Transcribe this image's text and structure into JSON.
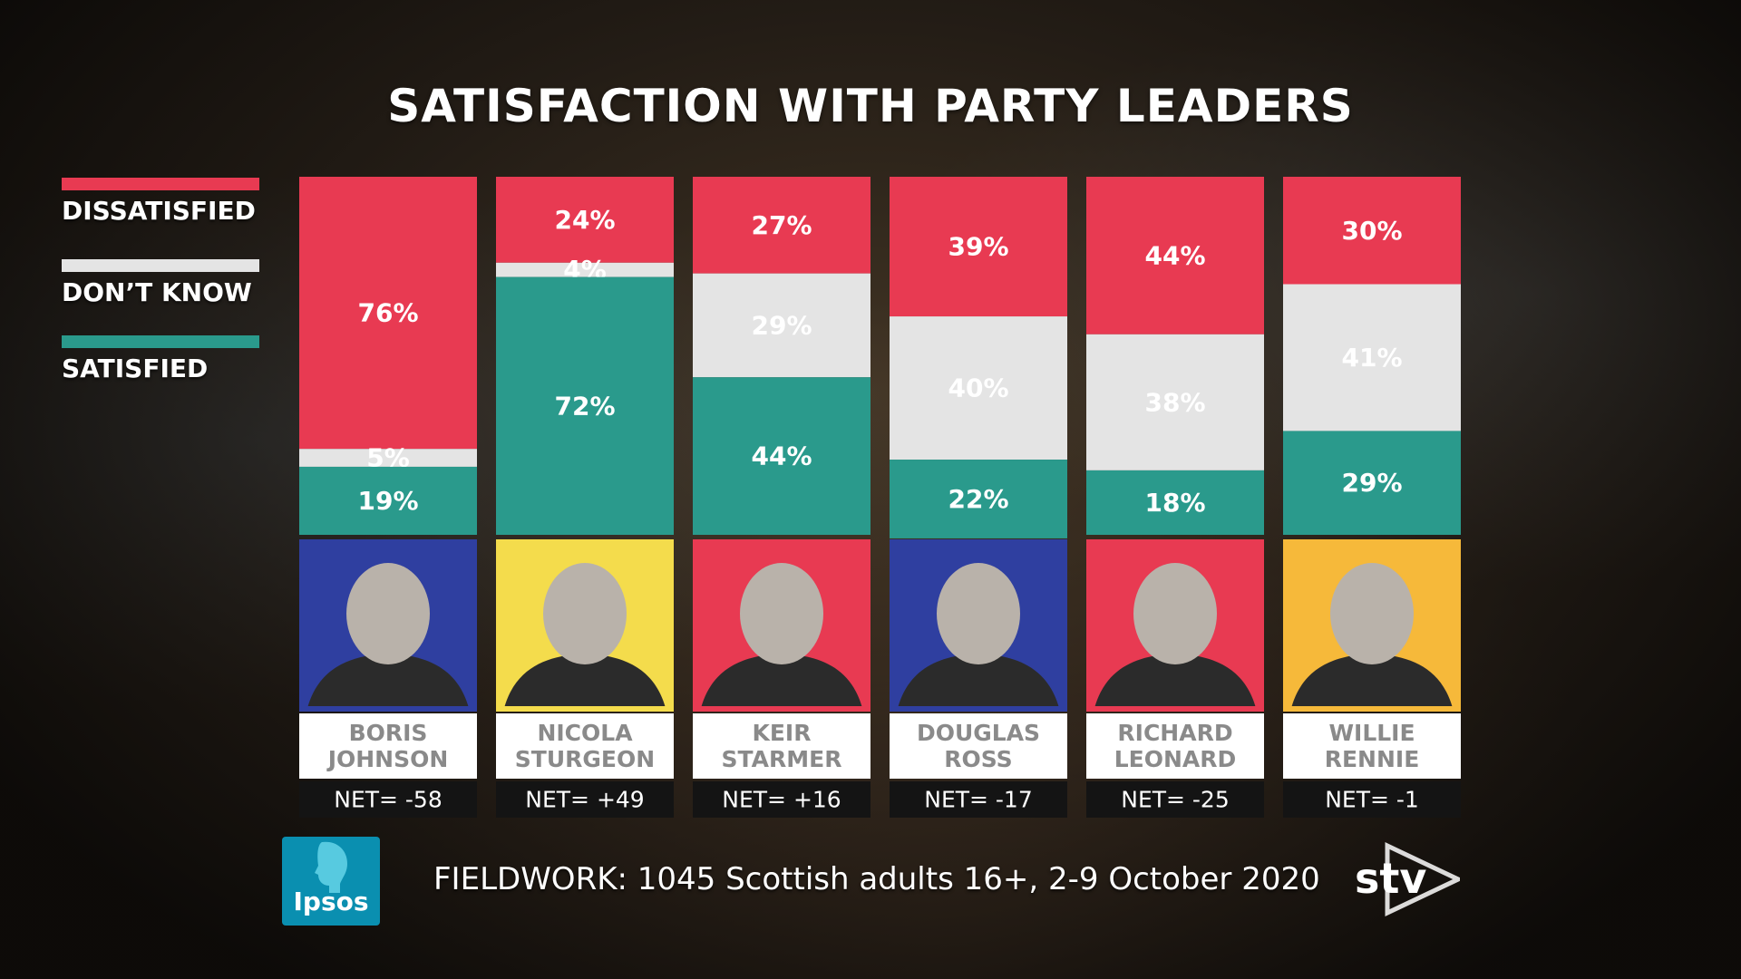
{
  "colors": {
    "dissatisfied": "#e83a52",
    "dont_know": "#e4e4e4",
    "satisfied": "#2a9a8c",
    "ipsos": "#0a8fb0"
  },
  "legend": {
    "dissatisfied": "DISSATISFIED",
    "dont_know": "DON’T KNOW",
    "satisfied": "SATISFIED"
  },
  "footer": {
    "fieldwork": "FIELDWORK: 1045 Scottish adults 16+, 2-9 October 2020",
    "ipsos_logo_text": "Ipsos",
    "stv_logo_text": "stv"
  },
  "chart_data": {
    "type": "bar",
    "stacked": true,
    "title": "SATISFACTION WITH PARTY LEADERS",
    "categories": [
      "BORIS JOHNSON",
      "NICOLA STURGEON",
      "KEIR STARMER",
      "DOUGLAS ROSS",
      "RICHARD LEONARD",
      "WILLIE RENNIE"
    ],
    "name_lines": [
      [
        "BORIS",
        "JOHNSON"
      ],
      [
        "NICOLA",
        "STURGEON"
      ],
      [
        "KEIR",
        "STARMER"
      ],
      [
        "DOUGLAS",
        "ROSS"
      ],
      [
        "RICHARD",
        "LEONARD"
      ],
      [
        "WILLIE",
        "RENNIE"
      ]
    ],
    "series": [
      {
        "name": "DISSATISFIED",
        "values": [
          76,
          24,
          27,
          39,
          44,
          30
        ],
        "labels": [
          "76%",
          "24%",
          "27%",
          "39%",
          "44%",
          "30%"
        ]
      },
      {
        "name": "DON’T KNOW",
        "values": [
          5,
          4,
          29,
          40,
          38,
          41
        ],
        "labels": [
          "5%",
          "4%",
          "29%",
          "40%",
          "38%",
          "41%"
        ]
      },
      {
        "name": "SATISFIED",
        "values": [
          19,
          72,
          44,
          22,
          18,
          29
        ],
        "labels": [
          "19%",
          "72%",
          "44%",
          "22%",
          "18%",
          "29%"
        ]
      }
    ],
    "net": [
      "NET= -58",
      "NET= +49",
      "NET= +16",
      "NET= -17",
      "NET= -25",
      "NET= -1"
    ],
    "party_colors": [
      "#2f3fa0",
      "#f4dc4c",
      "#e83a52",
      "#2f3fa0",
      "#e83a52",
      "#f6b93a"
    ],
    "legend_position": "left",
    "ylim": [
      0,
      100
    ]
  }
}
